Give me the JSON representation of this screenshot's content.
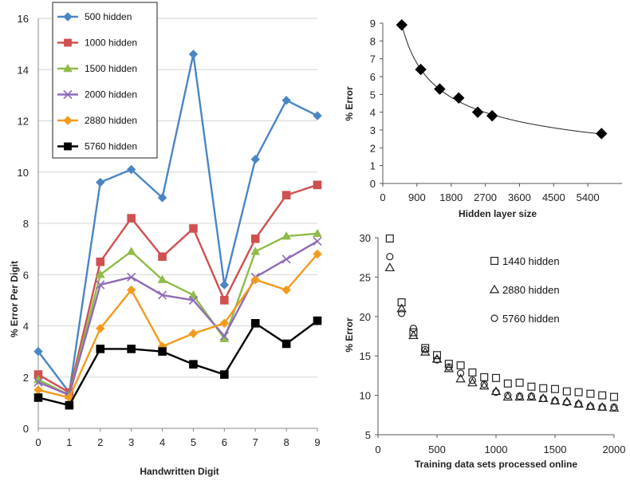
{
  "chart_data": [
    {
      "type": "line",
      "xlabel": "Handwritten Digit",
      "ylabel": "% Error Per Digit",
      "xlim": [
        0,
        9
      ],
      "ylim": [
        0,
        16
      ],
      "x_ticks": [
        "0",
        "1",
        "2",
        "3",
        "4",
        "5",
        "6",
        "7",
        "8",
        "9"
      ],
      "y_ticks": [
        "0",
        "2",
        "4",
        "6",
        "8",
        "10",
        "12",
        "14",
        "16"
      ],
      "grid": true,
      "legend": "top-left",
      "x": [
        0,
        1,
        2,
        3,
        4,
        5,
        6,
        7,
        8,
        9
      ],
      "series": [
        {
          "name": "500 hidden",
          "color": "#4a86c5",
          "marker": "diamond",
          "values": [
            3.0,
            1.4,
            9.6,
            10.1,
            9.0,
            14.6,
            5.6,
            10.5,
            12.8,
            12.2
          ]
        },
        {
          "name": "1000 hidden",
          "color": "#d05050",
          "marker": "square",
          "values": [
            2.1,
            1.4,
            6.5,
            8.2,
            6.7,
            7.8,
            5.0,
            7.4,
            9.1,
            9.5
          ]
        },
        {
          "name": "1500 hidden",
          "color": "#90bb4a",
          "marker": "triangle",
          "values": [
            1.9,
            1.3,
            6.0,
            6.9,
            5.8,
            5.2,
            3.5,
            6.9,
            7.5,
            7.6
          ]
        },
        {
          "name": "2000 hidden",
          "color": "#8e6bb8",
          "marker": "x",
          "values": [
            1.8,
            1.3,
            5.6,
            5.9,
            5.2,
            5.0,
            3.6,
            5.9,
            6.6,
            7.3
          ]
        },
        {
          "name": "2880 hidden",
          "color": "#f39a1d",
          "marker": "diamond",
          "values": [
            1.5,
            1.2,
            3.9,
            5.4,
            3.2,
            3.7,
            4.1,
            5.8,
            5.4,
            6.8
          ]
        },
        {
          "name": "5760 hidden",
          "color": "#000000",
          "marker": "square",
          "values": [
            1.2,
            0.9,
            3.1,
            3.1,
            3.0,
            2.5,
            2.1,
            4.1,
            3.3,
            4.2
          ]
        }
      ]
    },
    {
      "type": "scatter",
      "xlabel": "Hidden layer size",
      "ylabel": "% Error",
      "xlim": [
        0,
        6300
      ],
      "ylim": [
        0,
        9
      ],
      "x_ticks": [
        "0",
        "900",
        "1800",
        "2700",
        "3600",
        "4500",
        "5400"
      ],
      "y_ticks": [
        "0",
        "1",
        "2",
        "3",
        "4",
        "5",
        "6",
        "7",
        "8",
        "9"
      ],
      "grid": false,
      "trendline": true,
      "series": [
        {
          "name": "",
          "marker": "diamond",
          "color": "#000000",
          "x": [
            500,
            1000,
            1500,
            2000,
            2500,
            2880,
            5760
          ],
          "values": [
            8.9,
            6.4,
            5.3,
            4.8,
            4.0,
            3.8,
            2.8
          ]
        }
      ]
    },
    {
      "type": "scatter",
      "xlabel": "Training data sets processed online",
      "ylabel": "% Error",
      "xlim": [
        0,
        2000
      ],
      "ylim": [
        5,
        30
      ],
      "x_ticks": [
        "0",
        "500",
        "1000",
        "1500",
        "2000"
      ],
      "y_ticks": [
        "5",
        "10",
        "15",
        "20",
        "25",
        "30"
      ],
      "grid": false,
      "legend": "right",
      "x": [
        100,
        200,
        300,
        400,
        500,
        600,
        700,
        800,
        900,
        1000,
        1100,
        1200,
        1300,
        1400,
        1500,
        1600,
        1700,
        1800,
        1900,
        2000
      ],
      "series": [
        {
          "name": "1440 hidden",
          "marker": "square",
          "values": [
            29.9,
            21.8,
            18.0,
            16.0,
            15.1,
            14.0,
            13.8,
            12.9,
            12.3,
            12.2,
            11.5,
            11.6,
            11.1,
            10.9,
            10.8,
            10.5,
            10.4,
            10.2,
            10.0,
            9.8
          ]
        },
        {
          "name": "2880 hidden",
          "marker": "triangle",
          "values": [
            26.2,
            21.0,
            17.6,
            15.5,
            14.6,
            13.4,
            12.1,
            11.6,
            11.2,
            10.5,
            9.8,
            9.8,
            9.8,
            9.6,
            9.3,
            9.2,
            8.9,
            8.6,
            8.5,
            8.4
          ]
        },
        {
          "name": "5760 hidden",
          "marker": "circle",
          "values": [
            27.6,
            20.4,
            18.5,
            15.8,
            14.5,
            13.6,
            12.8,
            11.9,
            11.4,
            10.4,
            10.0,
            9.9,
            9.9,
            9.6,
            9.3,
            9.1,
            8.9,
            8.6,
            8.5,
            8.5
          ]
        }
      ]
    }
  ]
}
